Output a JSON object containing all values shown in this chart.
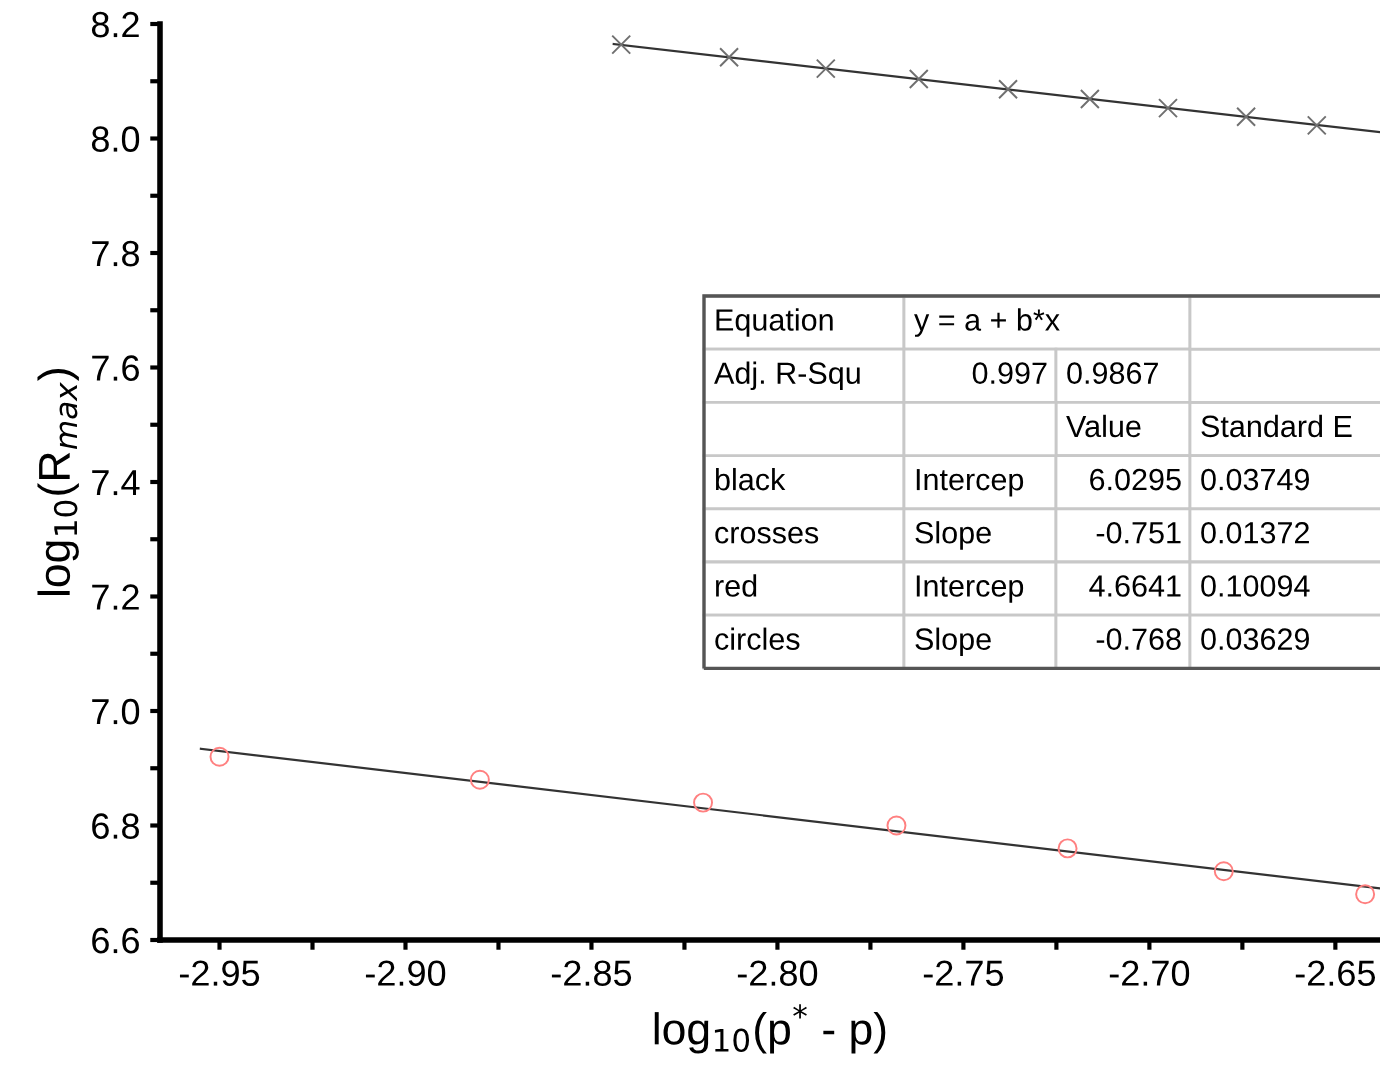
{
  "chart_data": {
    "type": "scatter",
    "xlabel": "log$_{10}$(p$^{*}$ - p)",
    "ylabel": "log$_{10}$(R$_{max}$)",
    "series": [
      {
        "marker": "cross",
        "color": "#707070",
        "x": [
          -2.842,
          -2.813,
          -2.787,
          -2.762,
          -2.738,
          -2.716,
          -2.695,
          -2.674,
          -2.655
        ],
        "values": [
          8.164,
          8.142,
          8.122,
          8.104,
          8.086,
          8.069,
          8.053,
          8.038,
          8.023
        ]
      },
      {
        "type": "line",
        "color": "#333333",
        "x": [
          -2.844,
          -2.638
        ],
        "values": [
          8.165,
          8.011
        ]
      },
      {
        "marker": "circle",
        "color": "#ff8080",
        "x": [
          -2.95,
          -2.88,
          -2.82,
          -2.768,
          -2.722,
          -2.68,
          -2.642
        ],
        "values": [
          6.92,
          6.88,
          6.84,
          6.8,
          6.76,
          6.72,
          6.68
        ]
      },
      {
        "type": "line",
        "color": "#333333",
        "x": [
          -2.955,
          -2.638
        ],
        "values": [
          6.934,
          6.69
        ]
      }
    ],
    "annotations": [
      "Equation",
      "y = a + b*x",
      "Adj. R-Squ",
      "0.997",
      "0.9867",
      "Value",
      "Standard E",
      "black",
      "Intercep",
      "6.0295",
      "0.03749",
      "crosses",
      "Slope",
      "-0.751",
      "0.01372",
      "red",
      "Intercep",
      "4.6641",
      "0.10094",
      "circles",
      "Slope",
      "-0.768",
      "0.03629"
    ],
    "xlim": [
      -2.966,
      -2.638
    ],
    "ylim": [
      6.6,
      8.2
    ],
    "xticks": [
      {
        "value": -2.95,
        "label": "-2.95"
      },
      {
        "value": -2.925,
        "label": null
      },
      {
        "value": -2.9,
        "label": "-2.90"
      },
      {
        "value": -2.875,
        "label": null
      },
      {
        "value": -2.85,
        "label": "-2.85"
      },
      {
        "value": -2.825,
        "label": null
      },
      {
        "value": -2.8,
        "label": "-2.80"
      },
      {
        "value": -2.775,
        "label": null
      },
      {
        "value": -2.75,
        "label": "-2.75"
      },
      {
        "value": -2.725,
        "label": null
      },
      {
        "value": -2.7,
        "label": "-2.70"
      },
      {
        "value": -2.675,
        "label": null
      },
      {
        "value": -2.65,
        "label": "-2.65"
      }
    ],
    "yticks": [
      {
        "value": 6.6,
        "label": "6.6"
      },
      {
        "value": 6.7,
        "label": null
      },
      {
        "value": 6.8,
        "label": "6.8"
      },
      {
        "value": 6.9,
        "label": null
      },
      {
        "value": 7.0,
        "label": "7.0"
      },
      {
        "value": 7.1,
        "label": null
      },
      {
        "value": 7.2,
        "label": "7.2"
      },
      {
        "value": 7.3,
        "label": null
      },
      {
        "value": 7.4,
        "label": "7.4"
      },
      {
        "value": 7.5,
        "label": null
      },
      {
        "value": 7.6,
        "label": "7.6"
      },
      {
        "value": 7.7,
        "label": null
      },
      {
        "value": 7.8,
        "label": "7.8"
      },
      {
        "value": 7.9,
        "label": null
      },
      {
        "value": 8.0,
        "label": "8.0"
      },
      {
        "value": 8.1,
        "label": null
      },
      {
        "value": 8.2,
        "label": "8.2"
      }
    ],
    "grid": false,
    "legend": false
  }
}
